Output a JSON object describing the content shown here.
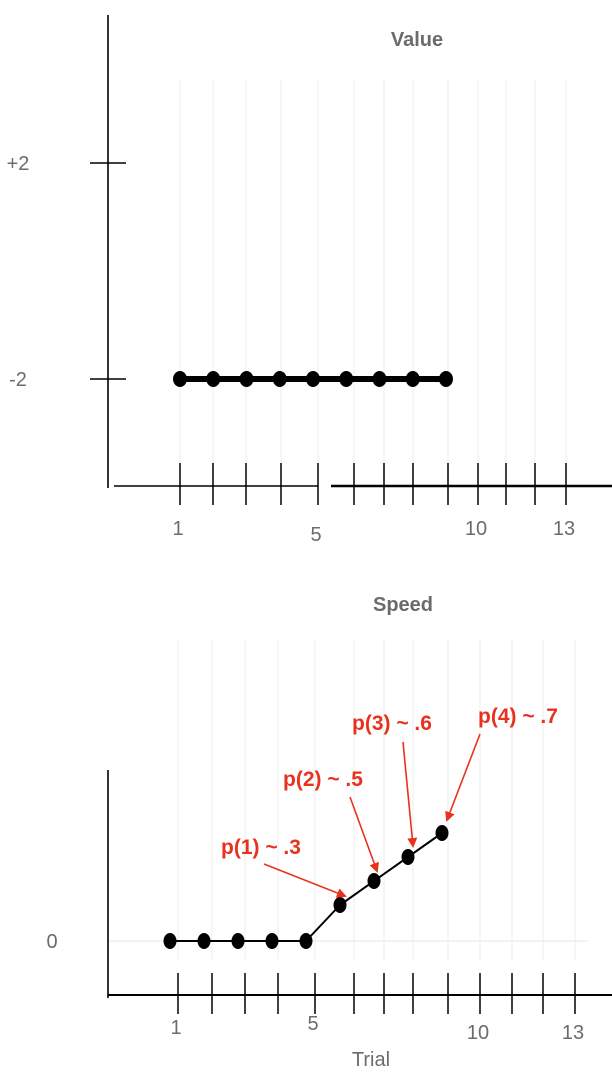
{
  "chart_data": [
    {
      "type": "line",
      "title": "Value",
      "xlabel": "",
      "ylabel": "",
      "xticks": [
        1,
        2,
        3,
        4,
        5,
        6,
        7,
        8,
        9,
        10,
        11,
        12,
        13
      ],
      "xtick_labels": [
        {
          "x": 1,
          "label": "1"
        },
        {
          "x": 5,
          "label": "5"
        },
        {
          "x": 10,
          "label": "10"
        },
        {
          "x": 13,
          "label": "13"
        }
      ],
      "yticks": [
        {
          "y": 2,
          "label": "+2"
        },
        {
          "y": -2,
          "label": "-2"
        }
      ],
      "xlim": [
        0.1,
        14.2
      ],
      "ylim": [
        -4,
        4.5
      ],
      "grid": "vertical",
      "series": [
        {
          "x": [
            1,
            2,
            3,
            4,
            5,
            6,
            7,
            8,
            9
          ],
          "y": [
            -2,
            -2,
            -2,
            -2,
            -2,
            -2,
            -2,
            -2,
            -2
          ],
          "color": "#000000"
        }
      ]
    },
    {
      "type": "line",
      "title": "Speed",
      "xlabel": "Trial",
      "ylabel": "",
      "xticks": [
        1,
        2,
        3,
        4,
        5,
        6,
        7,
        8,
        9,
        10,
        11,
        12,
        13
      ],
      "xtick_labels": [
        {
          "x": 1,
          "label": "1"
        },
        {
          "x": 5,
          "label": "5"
        },
        {
          "x": 10,
          "label": "10"
        },
        {
          "x": 13,
          "label": "13"
        }
      ],
      "yticks": [
        {
          "y": 0,
          "label": "0"
        }
      ],
      "xlim": [
        -0.2,
        13.2
      ],
      "ylim": [
        -0.5,
        1.5
      ],
      "grid": "vertical",
      "series": [
        {
          "x": [
            1,
            2,
            3,
            4,
            5,
            6,
            7,
            8,
            9
          ],
          "y": [
            0,
            0,
            0,
            0,
            0,
            0.3,
            0.5,
            0.7,
            0.9
          ],
          "color": "#000000"
        }
      ],
      "annotations": [
        {
          "text": "p(1) ~ .3",
          "point": 6,
          "color": "#e8321e"
        },
        {
          "text": "p(2) ~ .5",
          "point": 7,
          "color": "#e8321e"
        },
        {
          "text": "p(3) ~ .6",
          "point": 8,
          "color": "#e8321e"
        },
        {
          "text": "p(4) ~ .7",
          "point": 9,
          "color": "#e8321e"
        }
      ]
    }
  ]
}
